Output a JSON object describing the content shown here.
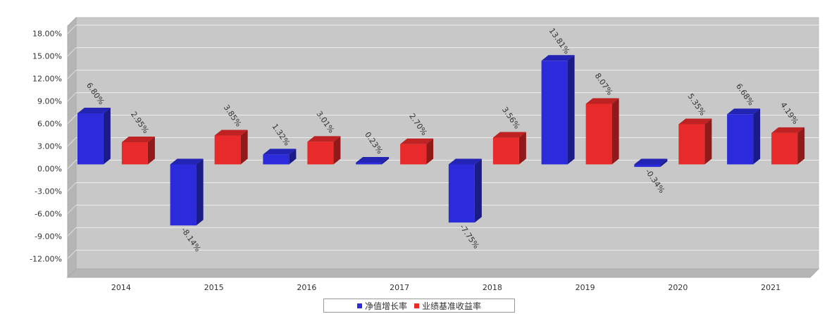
{
  "chart_data": {
    "type": "bar",
    "categories": [
      "2014",
      "2015",
      "2016",
      "2017",
      "2018",
      "2019",
      "2020",
      "2021"
    ],
    "series": [
      {
        "name": "净值增长率",
        "color": "#2b2bdc",
        "values": [
          6.8,
          -8.14,
          1.32,
          0.23,
          -7.75,
          13.81,
          -0.34,
          6.68
        ],
        "labels": [
          "6.80%",
          "-8.14%",
          "1.32%",
          "0.23%",
          "-7.75%",
          "13.81%",
          "-0.34%",
          "6.68%"
        ]
      },
      {
        "name": "业绩基准收益率",
        "color": "#e82a2a",
        "values": [
          2.95,
          3.85,
          3.01,
          2.7,
          3.56,
          8.07,
          5.35,
          4.19
        ],
        "labels": [
          "2.95%",
          "3.85%",
          "3.01%",
          "2.70%",
          "3.56%",
          "8.07%",
          "5.35%",
          "4.19%"
        ]
      }
    ],
    "yticks": [
      "-12.00%",
      "-9.00%",
      "-6.00%",
      "-3.00%",
      "0.00%",
      "3.00%",
      "6.00%",
      "9.00%",
      "12.00%",
      "15.00%",
      "18.00%"
    ],
    "ytick_values": [
      -12,
      -9,
      -6,
      -3,
      0,
      3,
      6,
      9,
      12,
      15,
      18
    ],
    "ylim": [
      -14.5,
      19
    ],
    "grid": true,
    "legend_position": "bottom"
  }
}
